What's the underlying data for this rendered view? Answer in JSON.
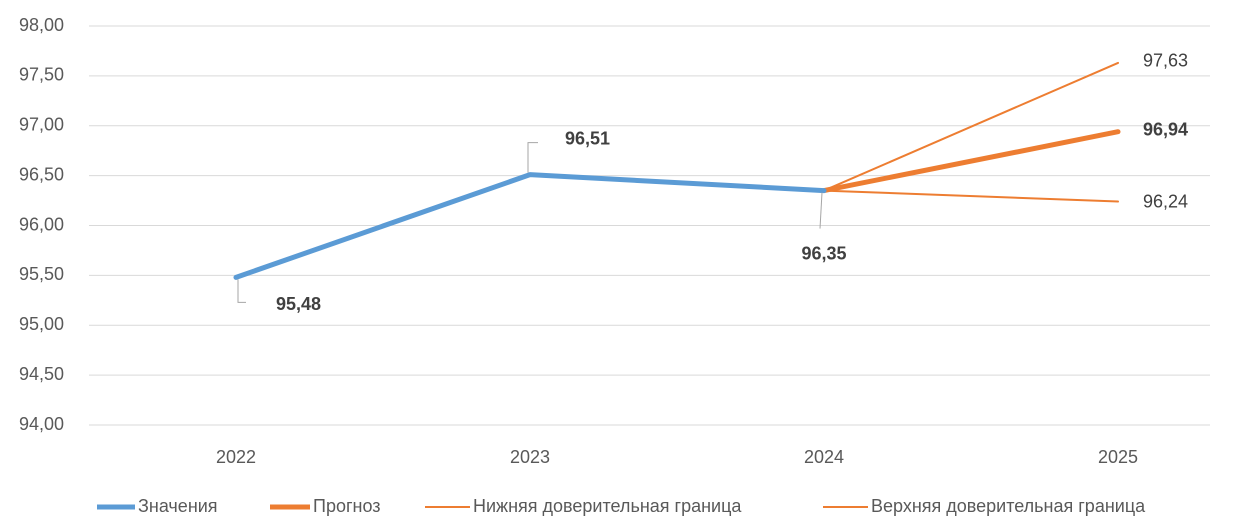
{
  "chart_data": {
    "type": "line",
    "categories": [
      "2022",
      "2023",
      "2024",
      "2025"
    ],
    "series": [
      {
        "name": "Значения",
        "color": "#5b9bd5",
        "values": [
          95.48,
          96.51,
          96.35,
          null
        ],
        "value_labels": [
          "95,48",
          "96,51",
          "96,35",
          null
        ]
      },
      {
        "name": "Прогноз",
        "color": "#ed7d31",
        "values": [
          null,
          null,
          96.35,
          96.94
        ],
        "value_labels": [
          null,
          null,
          null,
          "96,94"
        ]
      },
      {
        "name": "Нижняя доверительная граница",
        "color": "#ed7d31",
        "values": [
          null,
          null,
          96.35,
          96.24
        ],
        "value_labels": [
          null,
          null,
          null,
          "96,24"
        ]
      },
      {
        "name": "Верхняя доверительная граница",
        "color": "#ed7d31",
        "values": [
          null,
          null,
          96.35,
          97.63
        ],
        "value_labels": [
          null,
          null,
          null,
          "97,63"
        ]
      }
    ],
    "ylim": [
      94,
      98
    ],
    "yticks": [
      {
        "value": 94,
        "label": "94,00"
      },
      {
        "value": 94.5,
        "label": "94,50"
      },
      {
        "value": 95,
        "label": "95,00"
      },
      {
        "value": 95.5,
        "label": "95,50"
      },
      {
        "value": 96,
        "label": "96,00"
      },
      {
        "value": 96.5,
        "label": "96,50"
      },
      {
        "value": 97,
        "label": "97,00"
      },
      {
        "value": 97.5,
        "label": "97,50"
      },
      {
        "value": 98,
        "label": "98,00"
      }
    ],
    "grid": true,
    "legend": "bottom"
  }
}
